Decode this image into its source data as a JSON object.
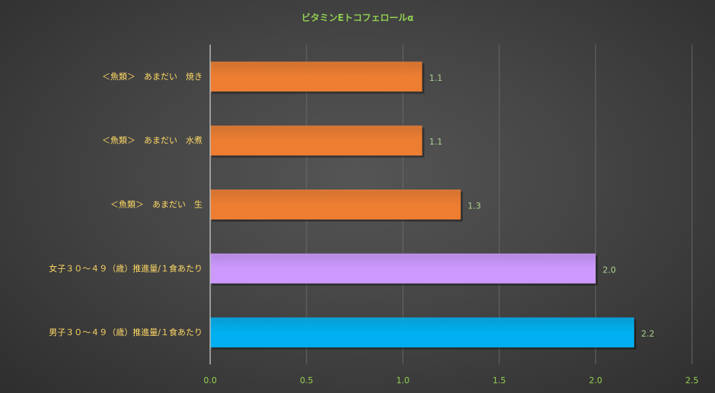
{
  "chart_data": {
    "type": "bar",
    "orientation": "horizontal",
    "title": "ビタミンEトコフェロールα",
    "categories": [
      "＜魚類＞　あまだい　焼き",
      "＜魚類＞　あまだい　水煮",
      "＜魚類＞　あまだい　生",
      "女子３０～４９（歳）推進量/１食あたり",
      "男子３０～４９（歳）推進量/１食あたり"
    ],
    "values": [
      1.1,
      1.1,
      1.3,
      2.0,
      2.2
    ],
    "data_labels": [
      "1.1",
      "1.1",
      "1.3",
      "2.0",
      "2.2"
    ],
    "bar_colors": [
      "#ED7D31",
      "#ED7D31",
      "#ED7D31",
      "#CC99FF",
      "#00B0F0"
    ],
    "xlim": [
      0,
      2.5
    ],
    "xticks": [
      0,
      0.5,
      1,
      1.5,
      2,
      2.5
    ],
    "xtick_labels": [
      "0.0",
      "0.5",
      "1.0",
      "1.5",
      "2.0",
      "2.5"
    ],
    "xlabel": "",
    "ylabel": "",
    "grid": "vertical",
    "legend": "none"
  },
  "colors": {
    "title": "#92D050",
    "category_label": "#FFD966",
    "tick_label": "#92D050",
    "data_label": "#A9D18E",
    "gridline": "#6A6A6A",
    "axis_line": "#BFBFBF"
  }
}
